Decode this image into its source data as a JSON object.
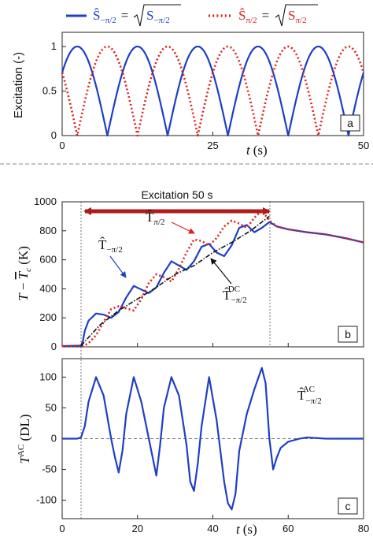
{
  "legend": {
    "blue": {
      "hat": "Ŝ",
      "sub": "−π/2",
      "eq": "=",
      "rad": "S",
      "radsub": "−π/2",
      "color": "#1f3fc4"
    },
    "red": {
      "hat": "Ŝ",
      "sub": "π/2",
      "eq": "=",
      "rad": "S",
      "radsub": "π/2",
      "color": "#e0201f"
    }
  },
  "divider_color": "#888888",
  "chart_data": [
    {
      "id": "a",
      "type": "line",
      "panel_label": "a",
      "xlabel_var": "t",
      "xlabel_unit": "(s)",
      "ylabel": "Excitation (-)",
      "xlim": [
        0,
        50
      ],
      "ylim": [
        0,
        1
      ],
      "xticks": [
        "0",
        "25",
        "50"
      ],
      "yticks": [
        "0",
        "0.5",
        "1"
      ],
      "xtick_values": [
        0,
        25,
        50
      ],
      "ytick_values": [
        0,
        0.5,
        1
      ],
      "grid": false,
      "legend_position": "top",
      "series": [
        {
          "color": "#1f3fc4",
          "style": "solid",
          "formula": "|sin(pi*t/10 + pi/4)|",
          "t_range": [
            0,
            50
          ]
        },
        {
          "color": "#e0201f",
          "style": "dotted",
          "formula": "|cos(pi*t/10 + pi/4)|",
          "t_range": [
            0,
            50
          ]
        }
      ]
    },
    {
      "id": "b",
      "type": "line",
      "panel_label": "b",
      "ylabel_parts": {
        "t": "T",
        "minus": " − ",
        "tbar": "T",
        "sub": "c",
        "unit": " (K)"
      },
      "xlim": [
        0,
        80
      ],
      "ylim": [
        0,
        1000
      ],
      "yticks": [
        "0",
        "200",
        "400",
        "600",
        "800",
        "1000"
      ],
      "ytick_values": [
        0,
        200,
        400,
        600,
        800,
        1000
      ],
      "grid": false,
      "excitation_label": "Excitation 50 s",
      "excitation_range": [
        5,
        55
      ],
      "annotations": [
        {
          "main": "T̂",
          "sub": "π/2",
          "sup": "",
          "color": "#e0201f"
        },
        {
          "main": "T̂",
          "sub": "−π/2",
          "sup": "",
          "color": "#1f3fc4"
        },
        {
          "main": "T̂",
          "sub": "−π/2",
          "sup": "DC",
          "color": "#111111"
        }
      ],
      "series": [
        {
          "color": "#1f3fc4",
          "style": "solid",
          "x": [
            0,
            5,
            5.5,
            6,
            7,
            9,
            11,
            13,
            15,
            17,
            19,
            21,
            23,
            25,
            27,
            29,
            31,
            33,
            35,
            37,
            39,
            41,
            43,
            45,
            47,
            49,
            51,
            53,
            55,
            57,
            60,
            65,
            70,
            75,
            80
          ],
          "y": [
            5,
            8,
            40,
            110,
            180,
            230,
            222,
            200,
            240,
            340,
            420,
            395,
            370,
            410,
            510,
            590,
            560,
            530,
            590,
            690,
            710,
            650,
            625,
            700,
            820,
            840,
            790,
            820,
            860,
            830,
            810,
            790,
            775,
            750,
            720
          ]
        },
        {
          "color": "#e0201f",
          "style": "dotted",
          "x": [
            0,
            5,
            6,
            7,
            9,
            11,
            13,
            15,
            17,
            19,
            21,
            23,
            25,
            27,
            29,
            31,
            33,
            35,
            37,
            39,
            41,
            43,
            45,
            47,
            49,
            51,
            53,
            55,
            57,
            60,
            65,
            70,
            75,
            80
          ],
          "y": [
            5,
            8,
            10,
            25,
            80,
            170,
            260,
            280,
            265,
            250,
            330,
            440,
            500,
            480,
            450,
            540,
            650,
            740,
            730,
            700,
            750,
            830,
            870,
            850,
            820,
            890,
            940,
            870,
            830,
            810,
            790,
            775,
            750,
            720
          ]
        },
        {
          "color": "#111111",
          "style": "dashdot",
          "x": [
            5,
            10,
            15,
            20,
            25,
            30,
            35,
            40,
            45,
            50,
            55
          ],
          "y": [
            8,
            150,
            250,
            330,
            410,
            500,
            560,
            650,
            720,
            800,
            900
          ]
        }
      ]
    },
    {
      "id": "c",
      "type": "line",
      "panel_label": "c",
      "xlabel_var": "t",
      "xlabel_unit": "(s)",
      "ylabel_parts": {
        "t": "T",
        "sup": "AC",
        "unit": " (DL)"
      },
      "xlim": [
        0,
        80
      ],
      "ylim": [
        -130,
        130
      ],
      "xticks": [
        "0",
        "20",
        "40",
        "60",
        "80"
      ],
      "xtick_values": [
        0,
        20,
        40,
        60,
        80
      ],
      "yticks": [
        "100",
        "50",
        "0",
        "-50",
        "-100"
      ],
      "ytick_values": [
        100,
        50,
        0,
        -50,
        -100
      ],
      "grid": false,
      "zero_line": true,
      "annotation": {
        "main": "T̂",
        "sub": "−π/2",
        "sup": "AC",
        "color": "#1f3fc4"
      },
      "series": [
        {
          "color": "#1f3fc4",
          "style": "solid",
          "x": [
            0,
            4,
            5,
            6,
            7,
            9,
            11,
            13,
            14,
            15,
            16,
            17,
            19,
            21,
            23,
            24,
            25,
            26,
            27,
            29,
            31,
            33,
            34,
            35,
            36,
            37,
            39,
            41,
            43,
            44,
            45,
            46,
            47,
            49,
            51,
            53,
            54,
            55,
            56,
            57,
            58,
            60,
            63,
            65,
            70,
            75,
            80
          ],
          "y": [
            0,
            0,
            2,
            20,
            60,
            100,
            70,
            0,
            -30,
            -55,
            -20,
            40,
            100,
            60,
            0,
            -30,
            -60,
            -10,
            50,
            100,
            70,
            -10,
            -70,
            -85,
            -40,
            20,
            100,
            30,
            -70,
            -105,
            -115,
            -90,
            -20,
            40,
            80,
            115,
            90,
            0,
            -50,
            -30,
            -15,
            -5,
            0,
            2,
            0,
            0,
            0
          ]
        }
      ]
    }
  ]
}
